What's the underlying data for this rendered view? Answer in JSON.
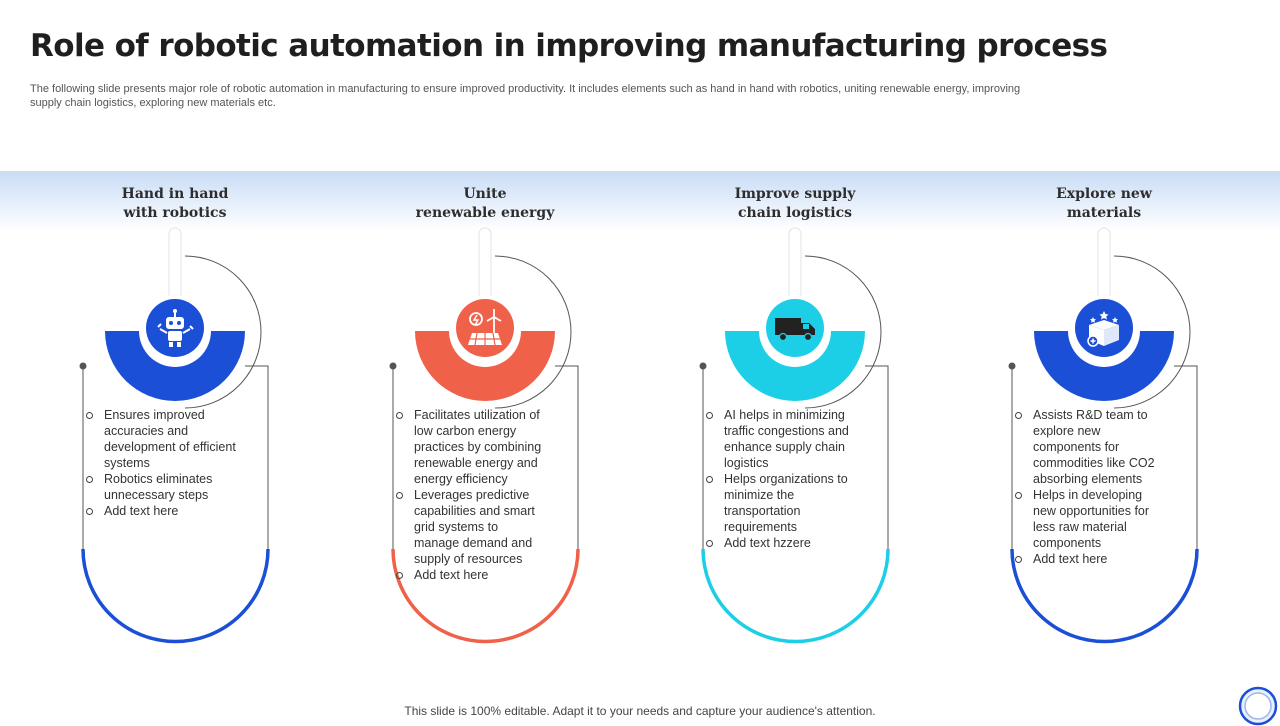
{
  "slide": {
    "title": "Role of robotic automation in improving manufacturing process",
    "subtitle": "The following slide presents major role of robotic automation in manufacturing to ensure improved productivity. It includes elements such as hand in hand with robotics, uniting renewable energy, improving supply chain logistics, exploring new materials etc.",
    "footer": "This slide is 100% editable. Adapt it to your needs and capture your audience's attention."
  },
  "columns": [
    {
      "title_line1": "Hand in hand",
      "title_line2": "with robotics",
      "accent": "#1a4fd6",
      "icon": "robot-icon",
      "bullets": [
        "Ensures improved accuracies and development  of efficient systems",
        "Robotics eliminates unnecessary steps",
        "Add text here"
      ]
    },
    {
      "title_line1": "Unite",
      "title_line2": "renewable energy",
      "accent": "#f0614a",
      "icon": "renewable-energy-icon",
      "bullets": [
        "Facilitates utilization of low carbon energy practices by combining renewable energy and energy efficiency",
        "Leverages  predictive capabilities and smart grid systems to manage demand and supply of resources",
        "Add text here"
      ]
    },
    {
      "title_line1": "Improve supply",
      "title_line2": "chain logistics",
      "accent": "#1ccfe6",
      "icon": "delivery-truck-icon",
      "bullets": [
        "AI helps in minimizing traffic congestions and enhance supply chain logistics",
        "Helps organizations to minimize the transportation requirements",
        "Add text hzzere"
      ]
    },
    {
      "title_line1": "Explore new",
      "title_line2": "materials",
      "accent": "#1a4fd6",
      "icon": "materials-box-icon",
      "bullets": [
        "Assists R&D team to explore new components for commodities like CO2 absorbing elements",
        "Helps in developing new opportunities for less raw material components",
        "Add text here"
      ]
    }
  ]
}
